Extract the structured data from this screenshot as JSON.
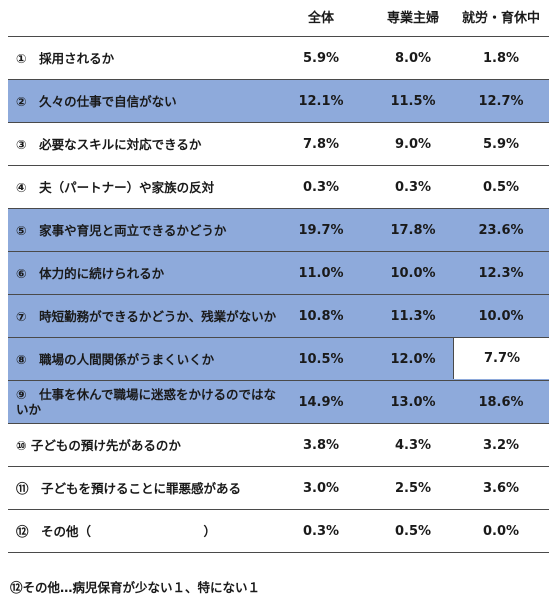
{
  "headers": [
    "全体",
    "専業主婦",
    "就労・育休中"
  ],
  "rows": [
    {
      "label": "①　採用されるか",
      "v1": "5.9%",
      "v2": "8.0%",
      "v3": "1.8%"
    },
    {
      "label": "②　久々の仕事で自信がない",
      "v1": "12.1%",
      "v2": "11.5%",
      "v3": "12.7%"
    },
    {
      "label": "③　必要なスキルに対応できるか",
      "v1": "7.8%",
      "v2": "9.0%",
      "v3": "5.9%"
    },
    {
      "label": "④　夫（パートナー）や家族の反対",
      "v1": "0.3%",
      "v2": "0.3%",
      "v3": "0.5%"
    },
    {
      "label": "⑤　家事や育児と両立できるかどうか",
      "v1": "19.7%",
      "v2": "17.8%",
      "v3": "23.6%"
    },
    {
      "label": "⑥　体力的に続けられるか",
      "v1": "11.0%",
      "v2": "10.0%",
      "v3": "12.3%"
    },
    {
      "label": "⑦　時短勤務ができるかどうか、残業がないか",
      "v1": "10.8%",
      "v2": "11.3%",
      "v3": "10.0%"
    },
    {
      "label": "⑧　職場の人間関係がうまくいくか",
      "v1": "10.5%",
      "v2": "12.0%",
      "v3": "7.7%"
    },
    {
      "label": "⑨　仕事を休んで職場に迷惑をかけるのではないか",
      "v1": "14.9%",
      "v2": "13.0%",
      "v3": "18.6%"
    },
    {
      "label": "⑩ 子どもの預け先があるのか",
      "v1": "3.8%",
      "v2": "4.3%",
      "v3": "3.2%"
    },
    {
      "label": "⑪　子どもを預けることに罪悪感がある",
      "v1": "3.0%",
      "v2": "2.5%",
      "v3": "3.6%"
    },
    {
      "label": "⑫　その他（　　　　　　　　　）",
      "v1": "0.3%",
      "v2": "0.5%",
      "v3": "0.0%"
    }
  ],
  "note": "⑫その他…病児保育が少ない１、特にない１"
}
